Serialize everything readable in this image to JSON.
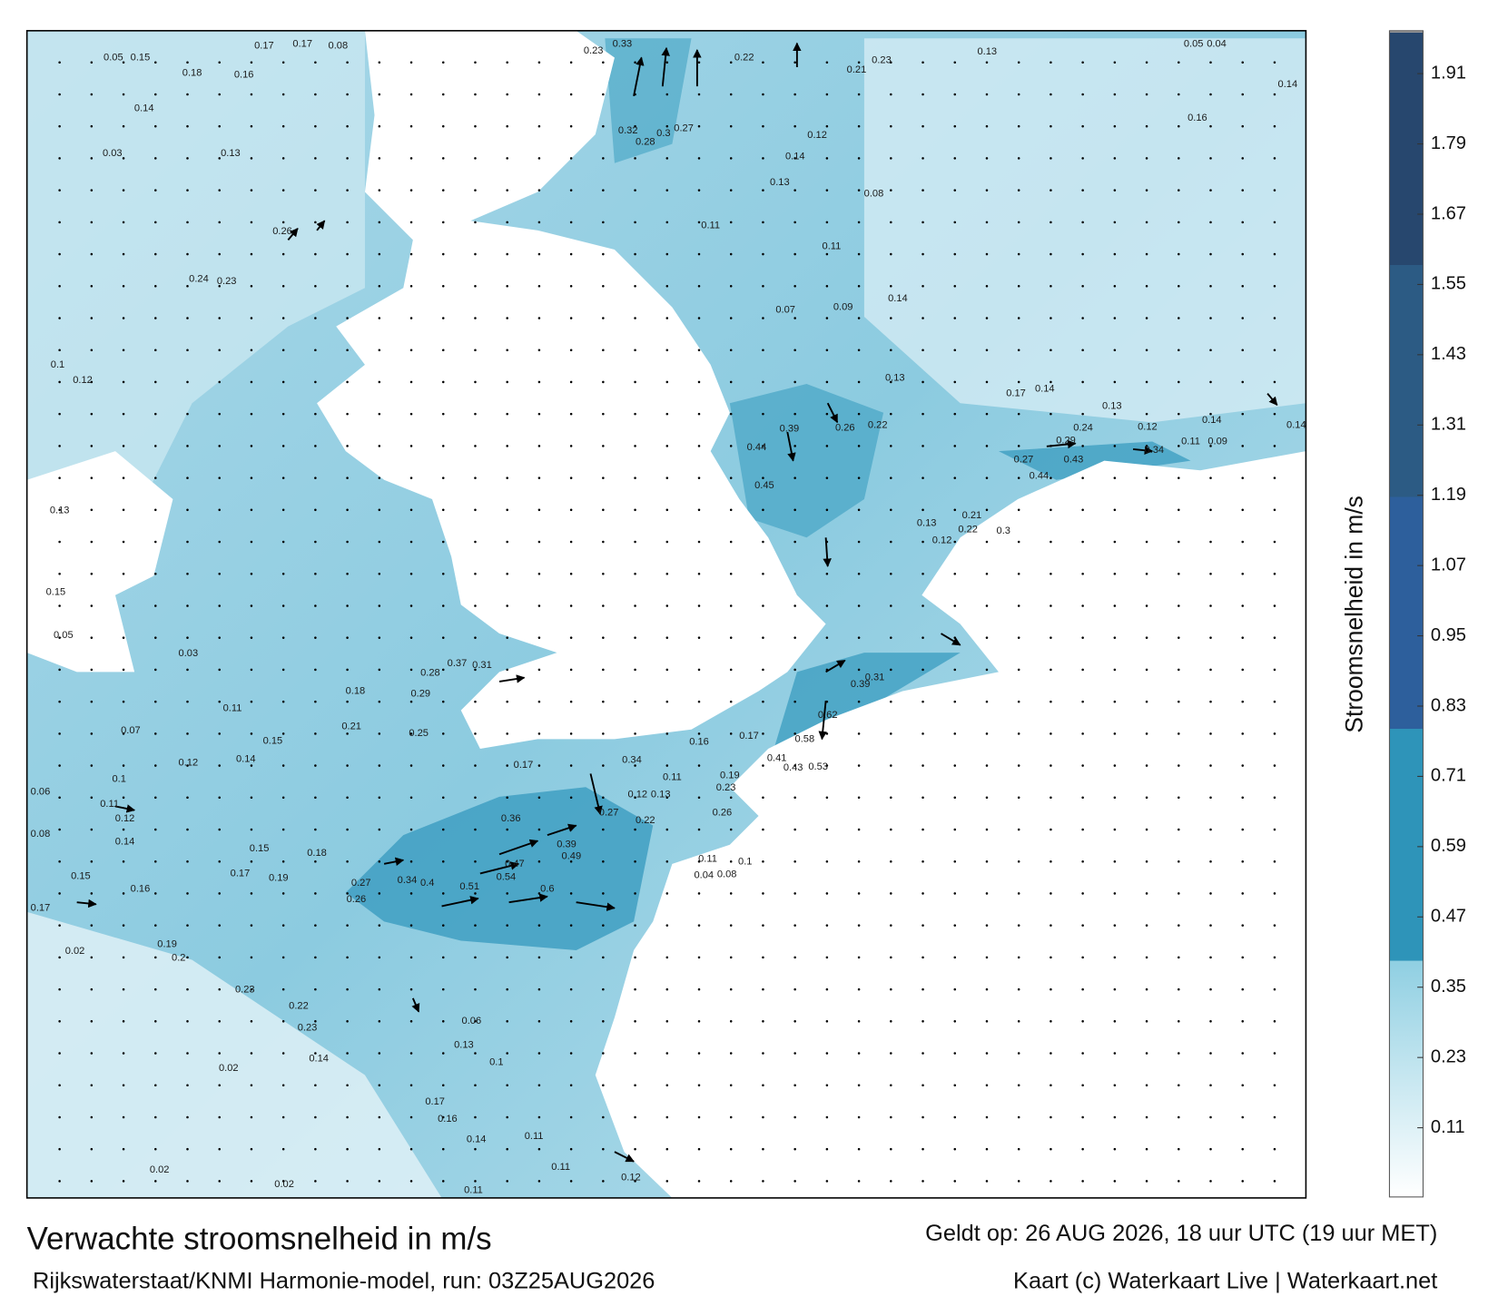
{
  "map": {
    "title": "Verwachte stroomsnelheid in m/s",
    "subtitle": "Rijkswaterstaat/KNMI Harmonie-model, run: 03Z25AUG2026",
    "valid_time": "Geldt op: 26 AUG 2026, 18 uur UTC (19 uur MET)",
    "credit": "Kaart (c) Waterkaart Live | Waterkaart.net",
    "current_labels": [
      "0.17",
      "0.17",
      "0.08",
      "0.05",
      "0.15",
      "0.18",
      "0.16",
      "0.14",
      "0.03",
      "0.13",
      "0.26",
      "0.24",
      "0.23",
      "0.12",
      "0.1",
      "0.13",
      "0.15",
      "0.05",
      "0.03",
      "0.11",
      "0.07",
      "0.1",
      "0.06",
      "0.08",
      "0.15",
      "0.17",
      "0.02",
      "0.02",
      "0.02",
      "0.02",
      "0.23",
      "0.33",
      "0.22",
      "0.21",
      "0.23",
      "0.13",
      "0.05",
      "0.04",
      "0.16",
      "0.14",
      "0.32",
      "0.27",
      "0.3",
      "0.28",
      "0.12",
      "0.14",
      "0.13",
      "0.08",
      "0.11",
      "0.11",
      "0.07",
      "0.09",
      "0.14",
      "0.13",
      "0.17",
      "0.14",
      "0.13",
      "0.24",
      "0.29",
      "0.34",
      "0.26",
      "0.22",
      "0.39",
      "0.44",
      "0.45",
      "0.36",
      "0.6",
      "0.51",
      "0.54",
      "0.47",
      "0.4",
      "0.34",
      "0.27",
      "0.26",
      "0.39",
      "0.49",
      "0.34",
      "0.27",
      "0.17",
      "0.58",
      "0.53",
      "0.43",
      "0.41",
      "0.62",
      "0.39",
      "0.31",
      "0.28",
      "0.37",
      "0.31",
      "0.25",
      "0.29",
      "0.18",
      "0.21",
      "0.15",
      "0.12",
      "0.14",
      "0.11",
      "0.12",
      "0.14",
      "0.16",
      "0.17",
      "0.19",
      "0.18",
      "0.15",
      "0.2",
      "0.19",
      "0.23",
      "0.22",
      "0.23",
      "0.14",
      "0.17",
      "0.16",
      "0.14",
      "0.11",
      "0.11",
      "0.12",
      "0.11",
      "0.06",
      "0.13",
      "0.1",
      "0.19",
      "0.23",
      "0.26",
      "0.1",
      "0.08",
      "0.11",
      "0.04",
      "0.12",
      "0.13",
      "0.22",
      "0.11",
      "0.16",
      "0.17",
      "0.13",
      "0.12",
      "0.22",
      "0.21",
      "0.3",
      "0.27",
      "0.44",
      "0.43",
      "0.12",
      "0.11",
      "0.09",
      "0.14",
      "0.14"
    ]
  },
  "chart_data": {
    "type": "colorbar",
    "label": "Stroomsnelheid in m/s",
    "lim": [
      0,
      1.98
    ],
    "ticks": [
      0.11,
      0.23,
      0.35,
      0.47,
      0.59,
      0.71,
      0.83,
      0.95,
      1.07,
      1.19,
      1.31,
      1.43,
      1.55,
      1.67,
      1.79,
      1.91
    ],
    "colors": [
      "#ffffff",
      "#8fcfe2",
      "#2e94b9",
      "#2d5f9c",
      "#2c5b84",
      "#27476e",
      "#1e2546"
    ]
  }
}
